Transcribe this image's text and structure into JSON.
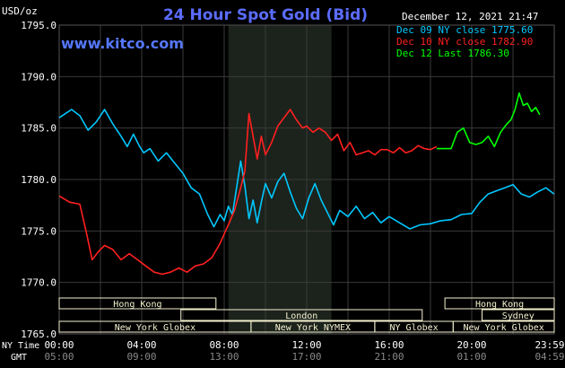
{
  "header": {
    "title": "24 Hour Spot Gold (Bid)",
    "unit": "USD/oz",
    "timestamp": "December 12, 2021 21:47",
    "site": "www.kitco.com"
  },
  "legend": [
    {
      "text": "Dec 09 NY close 1775.60",
      "color": "#00c8ff"
    },
    {
      "text": "Dec 10 NY close 1782.90",
      "color": "#ff2020"
    },
    {
      "text": "Dec 12 Last 1786.30",
      "color": "#00ff00"
    }
  ],
  "axis": {
    "y_ticks": [
      "1795.0",
      "1790.0",
      "1785.0",
      "1780.0",
      "1775.0",
      "1770.0",
      "1765.0"
    ],
    "x_ticks_ny": [
      "00:00",
      "04:00",
      "08:00",
      "12:00",
      "16:00",
      "20:00",
      "23:59"
    ],
    "x_ticks_gmt": [
      "05:00",
      "09:00",
      "13:00",
      "17:00",
      "21:00",
      "01:00",
      "04:59"
    ],
    "nytime_label": "NY Time",
    "gmt_label": "GMT"
  },
  "sessions": [
    {
      "label": "Hong Kong",
      "row": 0,
      "start": 0,
      "end": 7.6
    },
    {
      "label": "Hong Kong",
      "row": 0,
      "start": 18.7,
      "end": 24
    },
    {
      "label": "London",
      "row": 1,
      "start": 5.9,
      "end": 17.6
    },
    {
      "label": "Sydney",
      "row": 1,
      "start": 20.5,
      "end": 24
    },
    {
      "label": "New York Globex",
      "row": 2,
      "start": 0,
      "end": 9.3
    },
    {
      "label": "New York NYMEX",
      "row": 2,
      "start": 9.3,
      "end": 15.3
    },
    {
      "label": "NY Globex",
      "row": 2,
      "start": 15.3,
      "end": 19.1
    },
    {
      "label": "New York Globex",
      "row": 2,
      "start": 19.1,
      "end": 24
    }
  ],
  "chart_data": {
    "type": "line",
    "title": "24 Hour Spot Gold (Bid)",
    "ylabel": "USD/oz",
    "xlabel": "NY Time",
    "ylim": [
      1765,
      1795
    ],
    "xlim_hours": [
      0,
      24
    ],
    "highlight_hours": [
      8.2,
      13.2
    ],
    "colors": {
      "background": "#000000",
      "grid": "#3a3a3a",
      "highlight": "#1c231c",
      "axis_text": "#ffffff",
      "title": "#5b6cff",
      "site": "#5577ff",
      "session_bar": "#f5f1cf"
    },
    "series": [
      {
        "name": "Dec 09",
        "color": "#00c8ff",
        "x": [
          0,
          0.3,
          0.6,
          1.0,
          1.4,
          1.8,
          2.2,
          2.6,
          3.0,
          3.3,
          3.6,
          3.9,
          4.1,
          4.4,
          4.8,
          5.2,
          5.6,
          6.0,
          6.4,
          6.8,
          7.2,
          7.5,
          7.8,
          8.0,
          8.2,
          8.4,
          8.6,
          8.8,
          9.0,
          9.2,
          9.4,
          9.6,
          9.8,
          10.0,
          10.3,
          10.6,
          10.9,
          11.2,
          11.5,
          11.8,
          12.1,
          12.4,
          12.7,
          13.0,
          13.3,
          13.6,
          14.0,
          14.4,
          14.8,
          15.2,
          15.6,
          16.0,
          16.5,
          17.0,
          17.5,
          18.0,
          18.5,
          19.0,
          19.5,
          20.0,
          20.4,
          20.8,
          21.2,
          21.6,
          22.0,
          22.4,
          22.8,
          23.2,
          23.6,
          23.99
        ],
        "values": [
          1786.0,
          1786.4,
          1786.8,
          1786.2,
          1784.8,
          1785.6,
          1786.8,
          1785.4,
          1784.2,
          1783.2,
          1784.4,
          1783.2,
          1782.6,
          1783.0,
          1781.8,
          1782.6,
          1781.6,
          1780.6,
          1779.2,
          1778.6,
          1776.6,
          1775.4,
          1776.6,
          1776.0,
          1777.4,
          1776.6,
          1779.2,
          1781.8,
          1779.4,
          1776.2,
          1778.0,
          1775.8,
          1777.8,
          1779.6,
          1778.2,
          1779.8,
          1780.6,
          1778.8,
          1777.2,
          1776.2,
          1778.2,
          1779.6,
          1778.0,
          1776.8,
          1775.6,
          1777.0,
          1776.4,
          1777.4,
          1776.2,
          1776.8,
          1775.8,
          1776.4,
          1775.8,
          1775.2,
          1775.6,
          1775.7,
          1776.0,
          1776.1,
          1776.6,
          1776.7,
          1777.8,
          1778.6,
          1778.9,
          1779.2,
          1779.5,
          1778.6,
          1778.3,
          1778.8,
          1779.2,
          1778.6
        ]
      },
      {
        "name": "Dec 10",
        "color": "#ff2020",
        "x": [
          0,
          0.5,
          1.0,
          1.3,
          1.6,
          1.9,
          2.2,
          2.6,
          3.0,
          3.4,
          3.8,
          4.2,
          4.6,
          5.0,
          5.4,
          5.8,
          6.2,
          6.6,
          7.0,
          7.4,
          7.8,
          8.2,
          8.5,
          8.8,
          9.0,
          9.2,
          9.4,
          9.6,
          9.8,
          10.0,
          10.3,
          10.6,
          10.9,
          11.2,
          11.5,
          11.8,
          12.0,
          12.3,
          12.6,
          12.9,
          13.2,
          13.5,
          13.8,
          14.1,
          14.4,
          14.7,
          15.0,
          15.3,
          15.6,
          15.9,
          16.2,
          16.5,
          16.8,
          17.1,
          17.4,
          17.7,
          18.0,
          18.3
        ],
        "values": [
          1778.4,
          1777.8,
          1777.6,
          1775.0,
          1772.2,
          1773.0,
          1773.6,
          1773.2,
          1772.2,
          1772.8,
          1772.2,
          1771.6,
          1771.0,
          1770.8,
          1771.0,
          1771.4,
          1771.0,
          1771.6,
          1771.8,
          1772.4,
          1773.8,
          1775.6,
          1777.0,
          1779.2,
          1780.8,
          1786.4,
          1784.2,
          1782.0,
          1784.2,
          1782.4,
          1783.6,
          1785.2,
          1786.0,
          1786.8,
          1785.8,
          1785.0,
          1785.2,
          1784.6,
          1785.0,
          1784.6,
          1783.8,
          1784.4,
          1782.8,
          1783.6,
          1782.4,
          1782.6,
          1782.8,
          1782.4,
          1782.9,
          1782.9,
          1782.6,
          1783.1,
          1782.6,
          1782.8,
          1783.3,
          1783.0,
          1782.9,
          1783.2
        ]
      },
      {
        "name": "Dec 12",
        "color": "#00ff00",
        "x": [
          18.3,
          18.6,
          19.0,
          19.3,
          19.6,
          19.9,
          20.2,
          20.5,
          20.8,
          21.1,
          21.4,
          21.7,
          21.9,
          22.1,
          22.3,
          22.5,
          22.7,
          22.9,
          23.1,
          23.3
        ],
        "values": [
          1783.0,
          1783.0,
          1783.0,
          1784.6,
          1785.0,
          1783.6,
          1783.4,
          1783.6,
          1784.2,
          1783.2,
          1784.6,
          1785.4,
          1785.8,
          1786.8,
          1788.4,
          1787.2,
          1787.4,
          1786.6,
          1787.0,
          1786.3
        ]
      }
    ]
  }
}
